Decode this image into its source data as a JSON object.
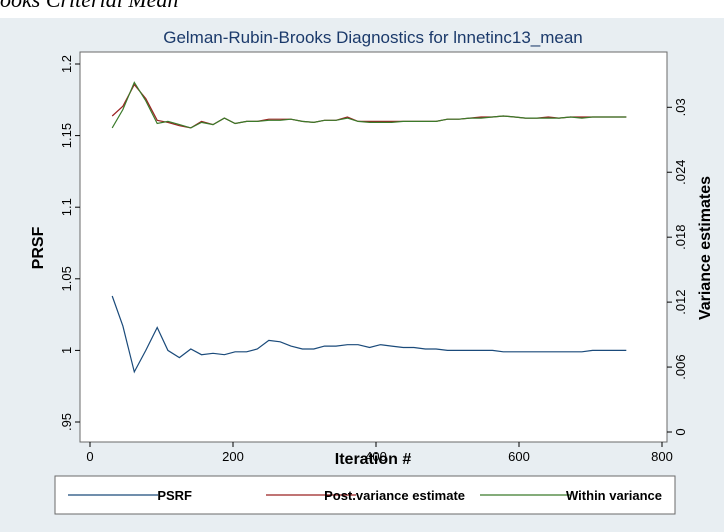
{
  "caption": "ooks Criterial Mean",
  "chart_data": {
    "type": "line",
    "title": "Gelman-Rubin-Brooks Diagnostics for lnnetinc13_mean",
    "xlabel": "Iteration #",
    "ylabel": "PRSF",
    "y2label": "Variance estimates",
    "xlim": [
      0,
      800
    ],
    "ylim": [
      0.95,
      1.2
    ],
    "y2lim": [
      0,
      0.034
    ],
    "xticks": [
      0,
      200,
      400,
      600,
      800
    ],
    "xtick_labels": [
      "0",
      "200",
      "400",
      "600",
      "800"
    ],
    "yticks": [
      0.95,
      1,
      1.05,
      1.1,
      1.15,
      1.2
    ],
    "ytick_labels": [
      ".95",
      "1",
      "1.05",
      "1.1",
      "1.15",
      "1.2"
    ],
    "y2ticks": [
      0,
      0.006,
      0.012,
      0.018,
      0.024,
      0.03
    ],
    "y2tick_labels": [
      "0",
      ".006",
      ".012",
      ".018",
      ".024",
      ".03"
    ],
    "grid": false,
    "legend_position": "bottom",
    "x": [
      31,
      46,
      62,
      78,
      94,
      109,
      125,
      141,
      156,
      172,
      188,
      203,
      219,
      234,
      250,
      266,
      281,
      297,
      313,
      328,
      344,
      360,
      375,
      391,
      406,
      422,
      438,
      453,
      469,
      484,
      500,
      516,
      531,
      547,
      563,
      578,
      594,
      609,
      625,
      641,
      656,
      672,
      688,
      703,
      719,
      734,
      750
    ],
    "series": [
      {
        "name": "PSRF",
        "axis": "left",
        "color": "#1a4a7a",
        "values": [
          1.038,
          1.017,
          0.985,
          1.0,
          1.016,
          1.0,
          0.995,
          1.001,
          0.997,
          0.998,
          0.997,
          0.999,
          0.999,
          1.001,
          1.007,
          1.006,
          1.003,
          1.001,
          1.001,
          1.003,
          1.003,
          1.004,
          1.004,
          1.002,
          1.004,
          1.003,
          1.002,
          1.002,
          1.001,
          1.001,
          1.0,
          1.0,
          1.0,
          1.0,
          1.0,
          0.999,
          0.999,
          0.999,
          0.999,
          0.999,
          0.999,
          0.999,
          0.999,
          1.0,
          1.0,
          1.0,
          1.0
        ]
      },
      {
        "name": "Post.variance estimate",
        "axis": "right",
        "color": "#9b2222",
        "values": [
          0.0292,
          0.0301,
          0.0321,
          0.0308,
          0.0288,
          0.0286,
          0.0283,
          0.0281,
          0.0287,
          0.0284,
          0.029,
          0.0285,
          0.0287,
          0.0287,
          0.0289,
          0.0289,
          0.0289,
          0.0287,
          0.0286,
          0.0288,
          0.0288,
          0.0291,
          0.0287,
          0.0287,
          0.0287,
          0.0287,
          0.0287,
          0.0287,
          0.0287,
          0.0287,
          0.0289,
          0.0289,
          0.029,
          0.0291,
          0.0291,
          0.0292,
          0.0291,
          0.029,
          0.029,
          0.0291,
          0.029,
          0.0291,
          0.0291,
          0.0291,
          0.0291,
          0.0291,
          0.0291
        ]
      },
      {
        "name": "Within variance",
        "axis": "right",
        "color": "#3a7a2a",
        "values": [
          0.0281,
          0.0298,
          0.0323,
          0.0306,
          0.0285,
          0.0287,
          0.0284,
          0.0281,
          0.0286,
          0.0284,
          0.029,
          0.0285,
          0.0287,
          0.0287,
          0.0288,
          0.0288,
          0.0289,
          0.0287,
          0.0286,
          0.0288,
          0.0288,
          0.029,
          0.0287,
          0.0286,
          0.0286,
          0.0286,
          0.0287,
          0.0287,
          0.0287,
          0.0287,
          0.0289,
          0.0289,
          0.029,
          0.029,
          0.0291,
          0.0292,
          0.0291,
          0.029,
          0.029,
          0.029,
          0.029,
          0.0291,
          0.029,
          0.0291,
          0.0291,
          0.0291,
          0.0291
        ]
      }
    ]
  }
}
